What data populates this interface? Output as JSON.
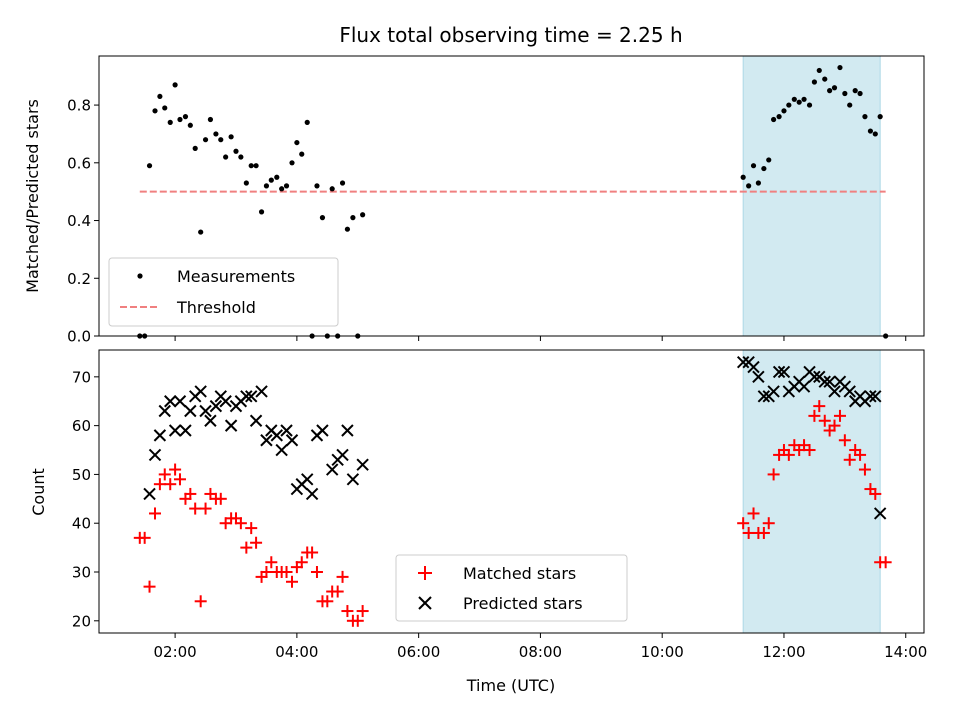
{
  "title": "Flux total observing time = 2.25 h",
  "colors": {
    "measurement": "#000000",
    "threshold": "#f08080",
    "matched": "#ff0000",
    "predicted": "#000000",
    "highlight": "#add8e6"
  },
  "chart_data": [
    {
      "type": "scatter",
      "ylabel": "Matched/Predicted stars",
      "xlim": [
        0.75,
        14.3
      ],
      "ylim": [
        0,
        0.97
      ],
      "yticks": [
        0.0,
        0.2,
        0.4,
        0.6,
        0.8
      ],
      "ytick_labels": [
        "0.0",
        "0.2",
        "0.4",
        "0.6",
        "0.8"
      ],
      "highlight_span": [
        11.33,
        13.58
      ],
      "legend": {
        "placement": "lower-left",
        "entries": [
          "Measurements",
          "Threshold"
        ]
      },
      "series": [
        {
          "name": "Measurements",
          "marker": "dot",
          "points": [
            [
              1.42,
              0.0
            ],
            [
              1.5,
              0.0
            ],
            [
              1.58,
              0.59
            ],
            [
              1.67,
              0.78
            ],
            [
              1.75,
              0.83
            ],
            [
              1.83,
              0.79
            ],
            [
              1.92,
              0.74
            ],
            [
              2.0,
              0.87
            ],
            [
              2.08,
              0.75
            ],
            [
              2.17,
              0.76
            ],
            [
              2.25,
              0.73
            ],
            [
              2.33,
              0.65
            ],
            [
              2.42,
              0.36
            ],
            [
              2.5,
              0.68
            ],
            [
              2.58,
              0.75
            ],
            [
              2.67,
              0.7
            ],
            [
              2.75,
              0.68
            ],
            [
              2.83,
              0.62
            ],
            [
              2.92,
              0.69
            ],
            [
              3.0,
              0.64
            ],
            [
              3.08,
              0.62
            ],
            [
              3.17,
              0.53
            ],
            [
              3.25,
              0.59
            ],
            [
              3.33,
              0.59
            ],
            [
              3.42,
              0.43
            ],
            [
              3.5,
              0.52
            ],
            [
              3.58,
              0.54
            ],
            [
              3.67,
              0.55
            ],
            [
              3.75,
              0.51
            ],
            [
              3.83,
              0.52
            ],
            [
              3.92,
              0.6
            ],
            [
              4.0,
              0.67
            ],
            [
              4.08,
              0.63
            ],
            [
              4.17,
              0.74
            ],
            [
              4.25,
              0.0
            ],
            [
              4.33,
              0.52
            ],
            [
              4.42,
              0.41
            ],
            [
              4.5,
              0.0
            ],
            [
              4.58,
              0.51
            ],
            [
              4.67,
              0.0
            ],
            [
              4.75,
              0.53
            ],
            [
              4.83,
              0.37
            ],
            [
              4.92,
              0.41
            ],
            [
              5.0,
              0.0
            ],
            [
              5.08,
              0.42
            ],
            [
              11.33,
              0.55
            ],
            [
              11.42,
              0.52
            ],
            [
              11.5,
              0.59
            ],
            [
              11.58,
              0.53
            ],
            [
              11.67,
              0.58
            ],
            [
              11.75,
              0.61
            ],
            [
              11.83,
              0.75
            ],
            [
              11.92,
              0.76
            ],
            [
              12.0,
              0.78
            ],
            [
              12.08,
              0.8
            ],
            [
              12.17,
              0.82
            ],
            [
              12.25,
              0.81
            ],
            [
              12.33,
              0.82
            ],
            [
              12.42,
              0.8
            ],
            [
              12.5,
              0.88
            ],
            [
              12.58,
              0.92
            ],
            [
              12.67,
              0.89
            ],
            [
              12.75,
              0.85
            ],
            [
              12.83,
              0.86
            ],
            [
              12.92,
              0.93
            ],
            [
              13.0,
              0.84
            ],
            [
              13.08,
              0.8
            ],
            [
              13.17,
              0.85
            ],
            [
              13.25,
              0.84
            ],
            [
              13.33,
              0.76
            ],
            [
              13.42,
              0.71
            ],
            [
              13.5,
              0.7
            ],
            [
              13.58,
              0.76
            ],
            [
              13.67,
              0.0
            ]
          ]
        },
        {
          "name": "Threshold",
          "marker": "dashed-line",
          "points": [
            [
              1.42,
              0.5
            ],
            [
              13.67,
              0.5
            ]
          ]
        }
      ]
    },
    {
      "type": "scatter",
      "xlabel": "Time (UTC)",
      "ylabel": "Count",
      "xlim": [
        0.75,
        14.3
      ],
      "ylim": [
        17.5,
        75.5
      ],
      "xticks": [
        2,
        4,
        6,
        8,
        10,
        12,
        14
      ],
      "xtick_labels": [
        "02:00",
        "04:00",
        "06:00",
        "08:00",
        "10:00",
        "12:00",
        "14:00"
      ],
      "yticks": [
        20,
        30,
        40,
        50,
        60,
        70
      ],
      "ytick_labels": [
        "20",
        "30",
        "40",
        "50",
        "60",
        "70"
      ],
      "highlight_span": [
        11.33,
        13.58
      ],
      "legend": {
        "placement": "lower-center",
        "entries": [
          "Matched stars",
          "Predicted stars"
        ]
      },
      "series": [
        {
          "name": "Matched stars",
          "marker": "plus",
          "points": [
            [
              1.42,
              37
            ],
            [
              1.5,
              37
            ],
            [
              1.58,
              27
            ],
            [
              1.67,
              42
            ],
            [
              1.75,
              48
            ],
            [
              1.83,
              50
            ],
            [
              1.92,
              48
            ],
            [
              2.0,
              51
            ],
            [
              2.08,
              49
            ],
            [
              2.17,
              45
            ],
            [
              2.25,
              46
            ],
            [
              2.33,
              43
            ],
            [
              2.42,
              24
            ],
            [
              2.5,
              43
            ],
            [
              2.58,
              46
            ],
            [
              2.67,
              45
            ],
            [
              2.75,
              45
            ],
            [
              2.83,
              40
            ],
            [
              2.92,
              41
            ],
            [
              3.0,
              41
            ],
            [
              3.08,
              40
            ],
            [
              3.17,
              35
            ],
            [
              3.25,
              39
            ],
            [
              3.33,
              36
            ],
            [
              3.42,
              29
            ],
            [
              3.5,
              30
            ],
            [
              3.58,
              32
            ],
            [
              3.67,
              30
            ],
            [
              3.75,
              30
            ],
            [
              3.83,
              30
            ],
            [
              3.92,
              28
            ],
            [
              4.0,
              31
            ],
            [
              4.08,
              32
            ],
            [
              4.17,
              34
            ],
            [
              4.25,
              34
            ],
            [
              4.33,
              30
            ],
            [
              4.42,
              24
            ],
            [
              4.5,
              24
            ],
            [
              4.58,
              26
            ],
            [
              4.67,
              26
            ],
            [
              4.75,
              29
            ],
            [
              4.83,
              22
            ],
            [
              4.92,
              20
            ],
            [
              5.0,
              20
            ],
            [
              5.08,
              22
            ],
            [
              11.33,
              40
            ],
            [
              11.42,
              38
            ],
            [
              11.5,
              42
            ],
            [
              11.58,
              38
            ],
            [
              11.67,
              38
            ],
            [
              11.75,
              40
            ],
            [
              11.83,
              50
            ],
            [
              11.92,
              54
            ],
            [
              12.0,
              55
            ],
            [
              12.08,
              54
            ],
            [
              12.17,
              56
            ],
            [
              12.25,
              55
            ],
            [
              12.33,
              56
            ],
            [
              12.42,
              55
            ],
            [
              12.5,
              62
            ],
            [
              12.58,
              64
            ],
            [
              12.67,
              61
            ],
            [
              12.75,
              59
            ],
            [
              12.83,
              60
            ],
            [
              12.92,
              62
            ],
            [
              13.0,
              57
            ],
            [
              13.08,
              53
            ],
            [
              13.17,
              55
            ],
            [
              13.25,
              54
            ],
            [
              13.33,
              51
            ],
            [
              13.42,
              47
            ],
            [
              13.5,
              46
            ],
            [
              13.58,
              32
            ],
            [
              13.67,
              32
            ]
          ]
        },
        {
          "name": "Predicted stars",
          "marker": "x",
          "points": [
            [
              1.58,
              46
            ],
            [
              1.67,
              54
            ],
            [
              1.75,
              58
            ],
            [
              1.83,
              63
            ],
            [
              1.92,
              65
            ],
            [
              2.0,
              59
            ],
            [
              2.08,
              65
            ],
            [
              2.17,
              59
            ],
            [
              2.25,
              63
            ],
            [
              2.33,
              66
            ],
            [
              2.42,
              67
            ],
            [
              2.5,
              63
            ],
            [
              2.58,
              61
            ],
            [
              2.67,
              64
            ],
            [
              2.75,
              66
            ],
            [
              2.83,
              65
            ],
            [
              2.92,
              60
            ],
            [
              3.0,
              64
            ],
            [
              3.08,
              65
            ],
            [
              3.17,
              66
            ],
            [
              3.25,
              66
            ],
            [
              3.33,
              61
            ],
            [
              3.42,
              67
            ],
            [
              3.5,
              57
            ],
            [
              3.58,
              59
            ],
            [
              3.67,
              58
            ],
            [
              3.75,
              55
            ],
            [
              3.83,
              59
            ],
            [
              3.92,
              57
            ],
            [
              4.0,
              47
            ],
            [
              4.08,
              48
            ],
            [
              4.17,
              49
            ],
            [
              4.25,
              46
            ],
            [
              4.33,
              58
            ],
            [
              4.42,
              59
            ],
            [
              4.58,
              51
            ],
            [
              4.67,
              53
            ],
            [
              4.75,
              54
            ],
            [
              4.83,
              59
            ],
            [
              4.92,
              49
            ],
            [
              5.08,
              52
            ],
            [
              11.33,
              73
            ],
            [
              11.42,
              73
            ],
            [
              11.5,
              72
            ],
            [
              11.58,
              70
            ],
            [
              11.67,
              66
            ],
            [
              11.75,
              66
            ],
            [
              11.83,
              67
            ],
            [
              11.92,
              71
            ],
            [
              12.0,
              71
            ],
            [
              12.08,
              67
            ],
            [
              12.17,
              68
            ],
            [
              12.25,
              69
            ],
            [
              12.33,
              68
            ],
            [
              12.42,
              71
            ],
            [
              12.5,
              70
            ],
            [
              12.58,
              70
            ],
            [
              12.67,
              69
            ],
            [
              12.75,
              69
            ],
            [
              12.83,
              67
            ],
            [
              12.92,
              69
            ],
            [
              13.0,
              68
            ],
            [
              13.08,
              67
            ],
            [
              13.17,
              65
            ],
            [
              13.25,
              66
            ],
            [
              13.33,
              65
            ],
            [
              13.42,
              66
            ],
            [
              13.5,
              66
            ],
            [
              13.58,
              42
            ]
          ]
        }
      ]
    }
  ]
}
